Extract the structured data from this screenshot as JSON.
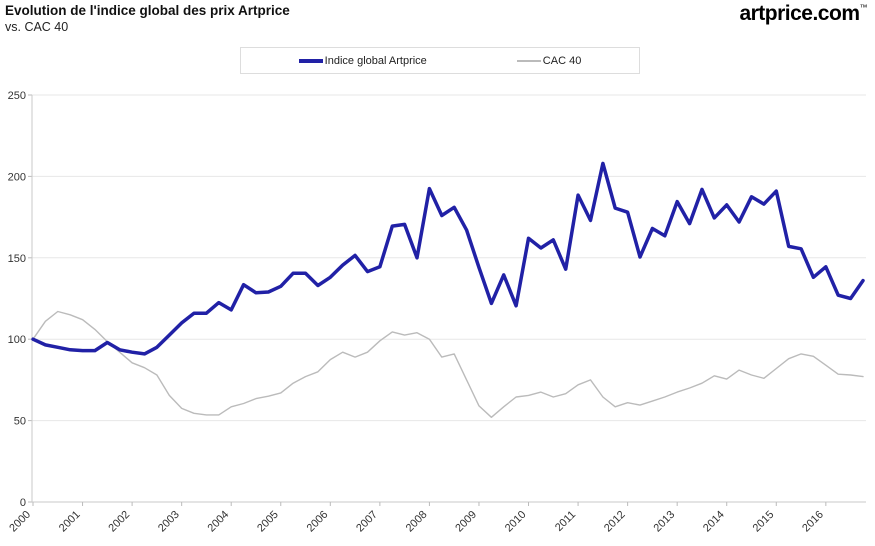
{
  "header": {
    "title": "Evolution de l'indice global des prix Artprice",
    "subtitle": "vs. CAC 40",
    "logo": "artprice.com",
    "logo_mark": "™"
  },
  "legend": [
    {
      "label": "Indice global Artprice",
      "color": "#2121A6",
      "thickness": 4
    },
    {
      "label": "CAC 40",
      "color": "#BBBBBB",
      "thickness": 2
    }
  ],
  "chart_data": {
    "type": "line",
    "title": "Evolution de l'indice global des prix Artprice vs. CAC 40",
    "xlabel": "",
    "ylabel": "",
    "x_unit": "quarterly, 2000Q1 - 2016Q4",
    "x_tick_labels": [
      "2000",
      "2001",
      "2002",
      "2003",
      "2004",
      "2005",
      "2006",
      "2007",
      "2008",
      "2009",
      "2010",
      "2011",
      "2012",
      "2013",
      "2014",
      "2015",
      "2016"
    ],
    "ylim": [
      0,
      250
    ],
    "y_ticks": [
      0,
      50,
      100,
      150,
      200,
      250
    ],
    "grid": "horizontal",
    "legend_position": "top-center",
    "series": [
      {
        "name": "Indice global Artprice",
        "color": "#2121A6",
        "width": 3.5,
        "values": [
          100,
          96.5,
          95,
          93.5,
          93,
          93,
          98,
          93.5,
          92,
          91,
          95,
          102.5,
          110,
          116,
          116,
          122.5,
          118,
          133.5,
          128.5,
          129,
          132.5,
          140.5,
          140.5,
          133,
          138,
          145.5,
          151.5,
          141.5,
          144.5,
          169.5,
          170.5,
          150,
          192.5,
          176,
          181,
          167,
          144,
          122,
          139.5,
          120.5,
          162,
          156,
          161,
          143,
          188.5,
          173,
          208,
          180.5,
          178,
          150.5,
          168,
          163.5,
          184.5,
          171,
          192,
          174.5,
          182.5,
          172,
          187.5,
          183,
          191,
          157,
          155.5,
          138,
          144.5,
          127,
          125,
          136
        ]
      },
      {
        "name": "CAC 40",
        "color": "#BBBBBB",
        "width": 1.4,
        "values": [
          100,
          111,
          117,
          115,
          112,
          106,
          98.5,
          92,
          85.5,
          82.5,
          78,
          65.5,
          57.5,
          54.5,
          53.5,
          53.5,
          58.5,
          60.5,
          63.5,
          65,
          67,
          73,
          77,
          80,
          87.5,
          92,
          89,
          92,
          99,
          104.5,
          102.5,
          104,
          100,
          89,
          91,
          75,
          59,
          52,
          58.5,
          64.5,
          65.5,
          67.5,
          64.5,
          66.5,
          72,
          75,
          64.5,
          58.5,
          61,
          59.5,
          62,
          64.5,
          67.5,
          70,
          73,
          77.5,
          75.5,
          81,
          78,
          76,
          82,
          88,
          91,
          89.5,
          84,
          78.5,
          78,
          77
        ]
      }
    ]
  }
}
